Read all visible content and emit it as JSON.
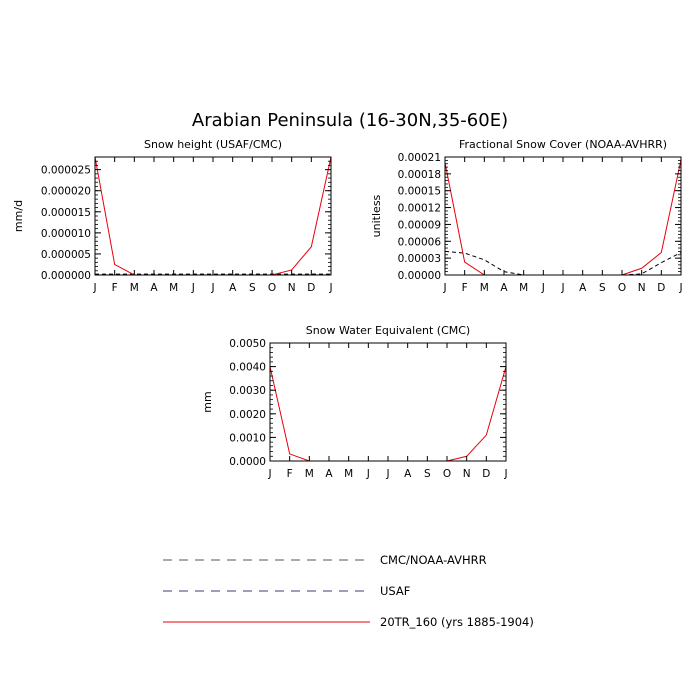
{
  "page": {
    "title": "Arabian Peninsula (16-30N,35-60E)"
  },
  "colors": {
    "model": "#e8000b",
    "observed": "#000000",
    "axis": "#000000"
  },
  "months": [
    "J",
    "F",
    "M",
    "A",
    "M",
    "J",
    "J",
    "A",
    "S",
    "O",
    "N",
    "D",
    "J"
  ],
  "chart_data": [
    {
      "type": "line",
      "title": "Snow height (USAF/CMC)",
      "xlabel": "",
      "ylabel": "mm/d",
      "ylim": [
        0,
        2.8e-05
      ],
      "yticks": [
        0,
        5e-06,
        1e-05,
        1.5e-05,
        2e-05,
        2.5e-05
      ],
      "yticklabels": [
        "0.000000",
        "0.000005",
        "0.000010",
        "0.000015",
        "0.000020",
        "0.000025"
      ],
      "x": [
        "J",
        "F",
        "M",
        "A",
        "M",
        "J",
        "J",
        "A",
        "S",
        "O",
        "N",
        "D",
        "J"
      ],
      "series": [
        {
          "name": "20TR_160 (yrs 1885-1904)",
          "style": "solid",
          "color": "#e8000b",
          "values": [
            2.8e-05,
            2.5e-06,
            0,
            0,
            0,
            0,
            0,
            0,
            0,
            0,
            1.2e-06,
            6.7e-06,
            2.8e-05
          ]
        },
        {
          "name": "USAF",
          "style": "dashed",
          "color": "#000000",
          "values": [
            2e-07,
            2e-07,
            2e-07,
            2e-07,
            2e-07,
            2e-07,
            2e-07,
            2e-07,
            2e-07,
            2e-07,
            2e-07,
            2e-07,
            2e-07
          ]
        }
      ]
    },
    {
      "type": "line",
      "title": "Fractional Snow Cover (NOAA-AVHRR)",
      "xlabel": "",
      "ylabel": "unitless",
      "ylim": [
        0,
        0.00021
      ],
      "yticks": [
        0,
        3e-05,
        6e-05,
        9e-05,
        0.00012,
        0.00015,
        0.00018,
        0.00021
      ],
      "yticklabels": [
        "0.00000",
        "0.00003",
        "0.00006",
        "0.00009",
        "0.00012",
        "0.00015",
        "0.00018",
        "0.00021"
      ],
      "x": [
        "J",
        "F",
        "M",
        "A",
        "M",
        "J",
        "J",
        "A",
        "S",
        "O",
        "N",
        "D",
        "J"
      ],
      "series": [
        {
          "name": "20TR_160 (yrs 1885-1904)",
          "style": "solid",
          "color": "#e8000b",
          "values": [
            0.0002,
            2.3e-05,
            0,
            0,
            0,
            0,
            0,
            0,
            0,
            0,
            1.2e-05,
            4e-05,
            0.000205
          ]
        },
        {
          "name": "CMC/NOAA-AVHRR",
          "style": "dashed",
          "color": "#000000",
          "values": [
            4.2e-05,
            3.9e-05,
            2.7e-05,
            6e-06,
            0,
            0,
            0,
            0,
            0,
            0,
            2e-06,
            2.2e-05,
            4e-05
          ]
        }
      ]
    },
    {
      "type": "line",
      "title": "Snow Water Equivalent (CMC)",
      "xlabel": "",
      "ylabel": "mm",
      "ylim": [
        0,
        0.005
      ],
      "yticks": [
        0,
        0.001,
        0.002,
        0.003,
        0.004,
        0.005
      ],
      "yticklabels": [
        "0.0000",
        "0.0010",
        "0.0020",
        "0.0030",
        "0.0040",
        "0.0050"
      ],
      "x": [
        "J",
        "F",
        "M",
        "A",
        "M",
        "J",
        "J",
        "A",
        "S",
        "O",
        "N",
        "D",
        "J"
      ],
      "series": [
        {
          "name": "20TR_160 (yrs 1885-1904)",
          "style": "solid",
          "color": "#e8000b",
          "values": [
            0.004,
            0.0003,
            0,
            0,
            0,
            0,
            0,
            0,
            0,
            0,
            0.0002,
            0.0011,
            0.004
          ]
        },
        {
          "name": "CMC",
          "style": "dashed",
          "color": "#000000",
          "values": [
            0,
            0,
            0,
            0,
            0,
            0,
            0,
            0,
            0,
            0,
            0,
            0,
            0
          ]
        }
      ]
    }
  ],
  "legend": {
    "items": [
      {
        "label": "CMC/NOAA-AVHRR",
        "style": "dashed",
        "color": "#555555"
      },
      {
        "label": "USAF",
        "style": "dashed",
        "color": "#3a3f70"
      },
      {
        "label": "20TR_160 (yrs 1885-1904)",
        "style": "solid",
        "color": "#e8000b"
      }
    ]
  }
}
